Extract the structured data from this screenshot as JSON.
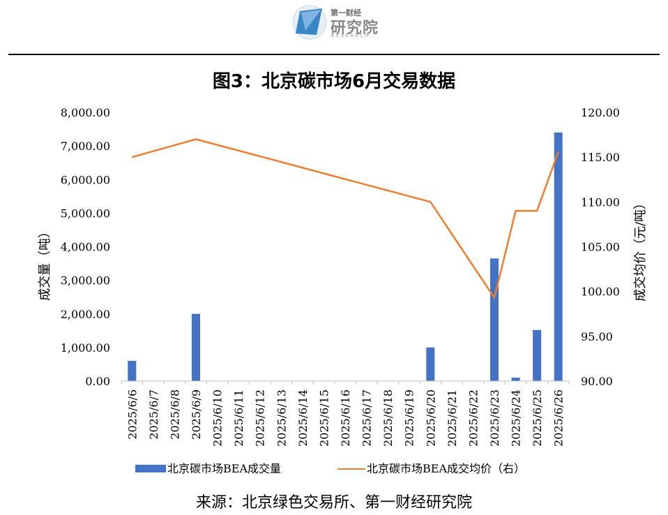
{
  "logo": {
    "icon": "research-logo-icon",
    "small_text": "第一财经",
    "big_text": "研究院",
    "tiny_text": "RESEARCH"
  },
  "title": "图3：北京碳市场6月交易数据",
  "source": "来源：北京绿色交易所、第一财经研究院",
  "colors": {
    "bar": "#4472C4",
    "line": "#ED7D31"
  },
  "chart_data": {
    "type": "bar",
    "categories": [
      "2025/6/6",
      "2025/6/7",
      "2025/6/8",
      "2025/6/9",
      "2025/6/10",
      "2025/6/11",
      "2025/6/12",
      "2025/6/13",
      "2025/6/14",
      "2025/6/15",
      "2025/6/16",
      "2025/6/17",
      "2025/6/18",
      "2025/6/19",
      "2025/6/20",
      "2025/6/21",
      "2025/6/22",
      "2025/6/23",
      "2025/6/24",
      "2025/6/25",
      "2025/6/26"
    ],
    "series": [
      {
        "name": "北京碳市场BEA成交量",
        "type": "bar",
        "axis": "left",
        "values": [
          600,
          null,
          null,
          2000,
          null,
          null,
          null,
          null,
          null,
          null,
          null,
          null,
          null,
          null,
          1000,
          null,
          null,
          3650,
          100,
          1520,
          7400
        ]
      },
      {
        "name": "北京碳市场BEA成交均价（右）",
        "type": "line",
        "axis": "right",
        "values": [
          115.0,
          null,
          null,
          117.0,
          null,
          null,
          null,
          null,
          null,
          null,
          null,
          null,
          null,
          null,
          110.0,
          null,
          null,
          99.3,
          109.0,
          109.0,
          115.6
        ]
      }
    ],
    "ylabel": "成交量（吨）",
    "y2label": "成交均价（元/吨）",
    "ylim": [
      0,
      8000
    ],
    "y2lim": [
      90,
      120
    ],
    "yticks": [
      "0.00",
      "1,000.00",
      "2,000.00",
      "3,000.00",
      "4,000.00",
      "5,000.00",
      "6,000.00",
      "7,000.00",
      "8,000.00"
    ],
    "y2ticks": [
      "90.00",
      "95.00",
      "100.00",
      "105.00",
      "110.00",
      "115.00",
      "120.00"
    ],
    "grid": false,
    "legend": "bottom"
  }
}
